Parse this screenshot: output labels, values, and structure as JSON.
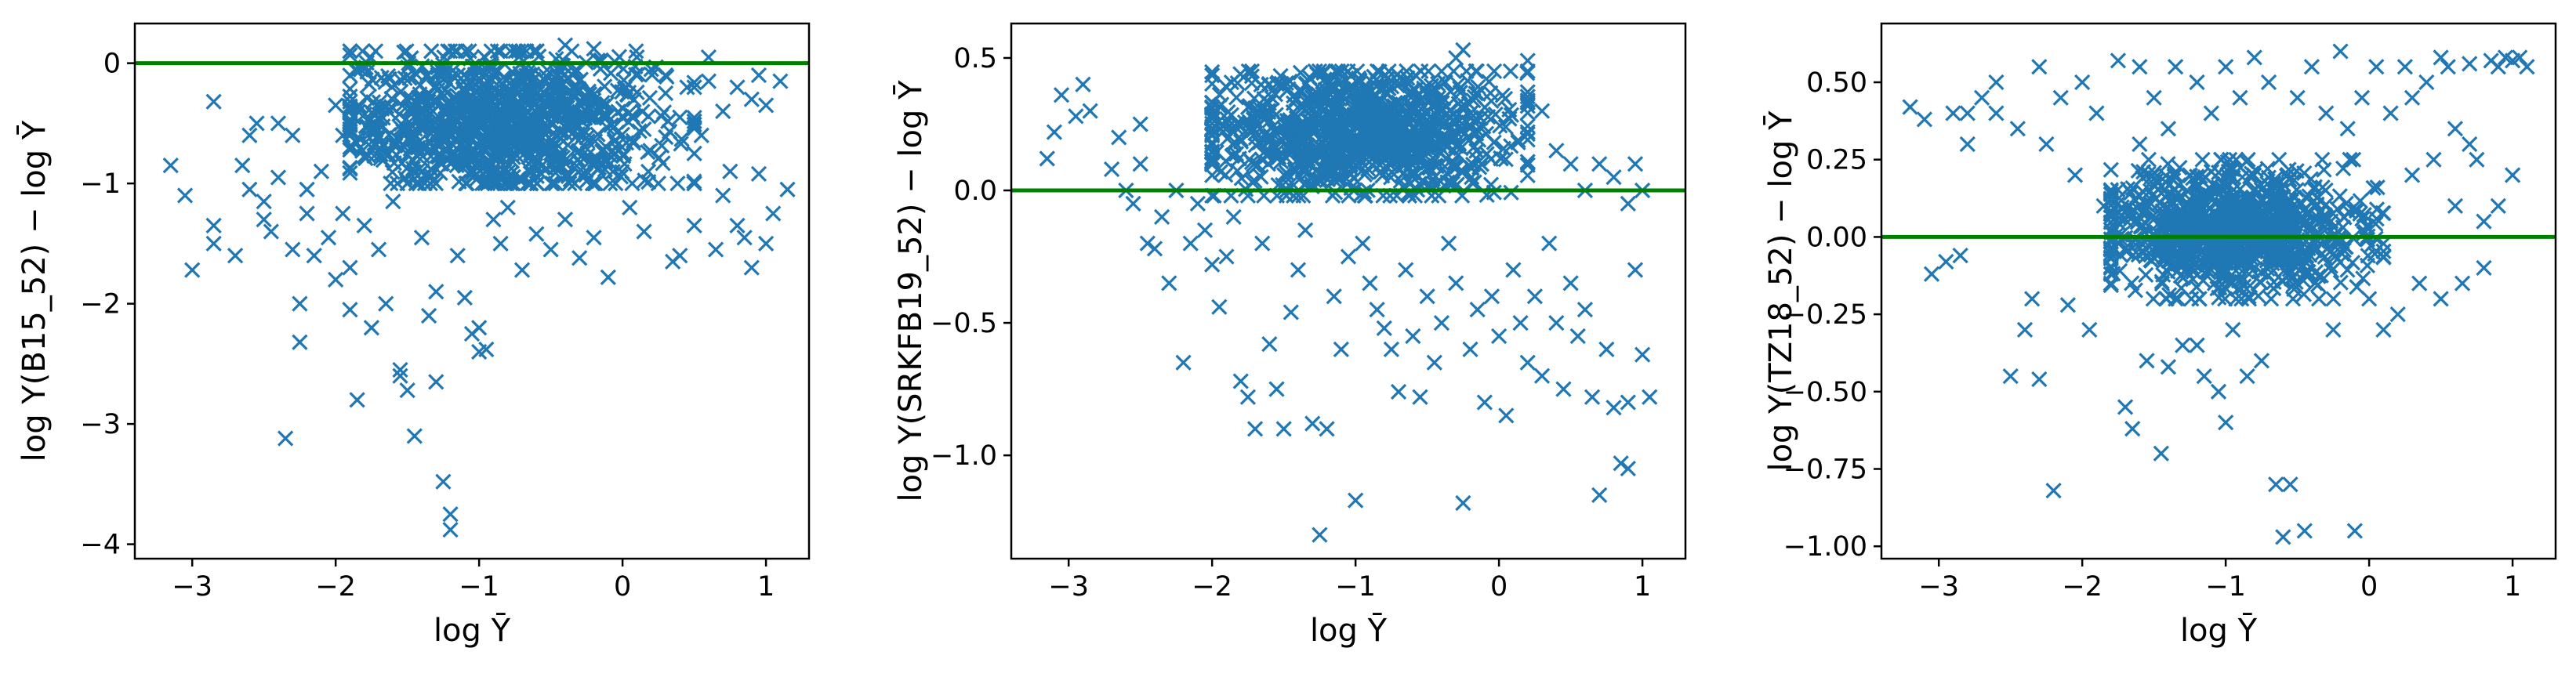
{
  "style": {
    "marker_color": "#1f77b4",
    "reference_line_color": "#008000",
    "frame_color": "#000000"
  },
  "chart_data": [
    {
      "type": "scatter",
      "marker": "x",
      "xlabel": "log Ȳ",
      "ylabel": "log Y(B15_52) − log Ȳ",
      "xlim": [
        -3.4,
        1.3
      ],
      "ylim": [
        -4.12,
        0.33
      ],
      "xticks": [
        -3,
        -2,
        -1,
        0,
        1
      ],
      "xtick_labels": [
        "−3",
        "−2",
        "−1",
        "0",
        "1"
      ],
      "yticks": [
        -4,
        -3,
        -2,
        -1,
        0
      ],
      "ytick_labels": [
        "−4",
        "−3",
        "−2",
        "−1",
        "0"
      ],
      "reference_line_y": 0,
      "cluster": {
        "count": 1000,
        "center": [
          -0.85,
          -0.5
        ],
        "spread": [
          0.55,
          0.3
        ],
        "x_range": [
          -1.9,
          0.5
        ],
        "y_range": [
          -1.0,
          0.1
        ]
      },
      "points": [
        [
          -3.15,
          -0.85
        ],
        [
          -3.05,
          -1.1
        ],
        [
          -3.0,
          -1.72
        ],
        [
          -2.85,
          -0.32
        ],
        [
          -2.85,
          -1.35
        ],
        [
          -2.85,
          -1.5
        ],
        [
          -2.7,
          -1.6
        ],
        [
          -2.65,
          -0.85
        ],
        [
          -2.6,
          -1.05
        ],
        [
          -2.55,
          -0.5
        ],
        [
          -2.5,
          -1.15
        ],
        [
          -2.5,
          -1.3
        ],
        [
          -2.45,
          -1.4
        ],
        [
          -2.4,
          -0.95
        ],
        [
          -2.35,
          -3.12
        ],
        [
          -2.3,
          -1.55
        ],
        [
          -2.25,
          -2.0
        ],
        [
          -2.25,
          -2.32
        ],
        [
          -2.2,
          -1.25
        ],
        [
          -2.15,
          -1.6
        ],
        [
          -2.05,
          -1.45
        ],
        [
          -2.0,
          -1.8
        ],
        [
          -1.95,
          -0.6
        ],
        [
          -1.9,
          -1.7
        ],
        [
          -1.9,
          -2.05
        ],
        [
          -1.85,
          -2.8
        ],
        [
          -1.8,
          -1.35
        ],
        [
          -1.75,
          -2.2
        ],
        [
          -1.7,
          -1.55
        ],
        [
          -1.65,
          -2.0
        ],
        [
          -1.6,
          -1.15
        ],
        [
          -1.55,
          -2.55
        ],
        [
          -1.55,
          -2.6
        ],
        [
          -1.5,
          -2.72
        ],
        [
          -1.45,
          -3.1
        ],
        [
          -1.4,
          -1.45
        ],
        [
          -1.35,
          -2.1
        ],
        [
          -1.3,
          -1.9
        ],
        [
          -1.3,
          -2.65
        ],
        [
          -1.25,
          -3.48
        ],
        [
          -1.2,
          -3.75
        ],
        [
          -1.2,
          -3.88
        ],
        [
          -1.15,
          -1.6
        ],
        [
          -1.1,
          -1.95
        ],
        [
          -1.05,
          -2.25
        ],
        [
          -1.0,
          -2.4
        ],
        [
          -1.0,
          -2.2
        ],
        [
          -0.95,
          -2.38
        ],
        [
          -0.9,
          -1.3
        ],
        [
          -0.85,
          -1.5
        ],
        [
          -0.8,
          -1.2
        ],
        [
          -0.7,
          -1.72
        ],
        [
          -0.6,
          -1.42
        ],
        [
          -0.5,
          -1.55
        ],
        [
          -0.4,
          -1.3
        ],
        [
          -0.3,
          -1.62
        ],
        [
          -0.2,
          -1.45
        ],
        [
          -0.1,
          -1.78
        ],
        [
          0.05,
          -1.2
        ],
        [
          0.15,
          -1.4
        ],
        [
          0.25,
          -1.0
        ],
        [
          0.3,
          -0.25
        ],
        [
          0.35,
          -1.65
        ],
        [
          0.4,
          -1.6
        ],
        [
          0.45,
          -0.2
        ],
        [
          0.5,
          -1.35
        ],
        [
          0.55,
          -0.6
        ],
        [
          0.6,
          -0.15
        ],
        [
          0.65,
          -1.55
        ],
        [
          0.7,
          -1.1
        ],
        [
          0.75,
          -0.9
        ],
        [
          0.8,
          -1.35
        ],
        [
          0.85,
          -1.45
        ],
        [
          0.9,
          -1.7
        ],
        [
          0.9,
          -0.3
        ],
        [
          0.95,
          -0.92
        ],
        [
          1.0,
          -1.5
        ],
        [
          1.05,
          -1.25
        ],
        [
          1.1,
          -0.15
        ],
        [
          1.15,
          -1.05
        ],
        [
          0.7,
          -0.4
        ],
        [
          0.8,
          -0.2
        ],
        [
          0.95,
          -0.1
        ],
        [
          1.0,
          -0.35
        ],
        [
          0.6,
          0.05
        ],
        [
          0.5,
          -0.2
        ],
        [
          -2.0,
          -0.35
        ],
        [
          -2.3,
          -0.6
        ],
        [
          -2.1,
          -0.9
        ],
        [
          -2.4,
          -0.5
        ],
        [
          -2.6,
          -0.6
        ],
        [
          -1.95,
          -1.25
        ],
        [
          -2.2,
          -1.05
        ],
        [
          0.2,
          -0.05
        ],
        [
          0.1,
          0.05
        ],
        [
          -0.2,
          0.12
        ],
        [
          -0.4,
          0.15
        ],
        [
          -0.7,
          0.1
        ],
        [
          0.3,
          -0.1
        ],
        [
          0.4,
          -0.45
        ]
      ]
    },
    {
      "type": "scatter",
      "marker": "x",
      "xlabel": "log Ȳ",
      "ylabel": "log Y(SRKFB19_52) − log Ȳ",
      "xlim": [
        -3.4,
        1.3
      ],
      "ylim": [
        -1.39,
        0.63
      ],
      "xticks": [
        -3,
        -2,
        -1,
        0,
        1
      ],
      "xtick_labels": [
        "−3",
        "−2",
        "−1",
        "0",
        "1"
      ],
      "yticks": [
        -1.0,
        -0.5,
        0.0,
        0.5
      ],
      "ytick_labels": [
        "−1.0",
        "−0.5",
        "0.0",
        "0.5"
      ],
      "reference_line_y": 0,
      "cluster": {
        "count": 1000,
        "center": [
          -1.0,
          0.22
        ],
        "spread": [
          0.55,
          0.12
        ],
        "x_range": [
          -2.0,
          0.2
        ],
        "y_range": [
          -0.02,
          0.45
        ]
      },
      "points": [
        [
          -3.15,
          0.12
        ],
        [
          -3.1,
          0.22
        ],
        [
          -3.05,
          0.36
        ],
        [
          -2.95,
          0.28
        ],
        [
          -2.9,
          0.4
        ],
        [
          -2.85,
          0.3
        ],
        [
          -2.7,
          0.08
        ],
        [
          -2.65,
          0.2
        ],
        [
          -2.6,
          0.0
        ],
        [
          -2.55,
          -0.05
        ],
        [
          -2.5,
          0.1
        ],
        [
          -2.5,
          0.25
        ],
        [
          -2.45,
          -0.2
        ],
        [
          -2.4,
          -0.22
        ],
        [
          -2.35,
          -0.1
        ],
        [
          -2.3,
          -0.35
        ],
        [
          -2.25,
          0.0
        ],
        [
          -2.2,
          -0.65
        ],
        [
          -2.15,
          -0.2
        ],
        [
          -2.1,
          -0.05
        ],
        [
          -2.05,
          -0.15
        ],
        [
          -2.0,
          -0.28
        ],
        [
          -1.95,
          -0.44
        ],
        [
          -1.9,
          -0.25
        ],
        [
          -1.85,
          -0.1
        ],
        [
          -1.8,
          -0.72
        ],
        [
          -1.75,
          -0.78
        ],
        [
          -1.7,
          -0.9
        ],
        [
          -1.65,
          -0.2
        ],
        [
          -1.6,
          -0.58
        ],
        [
          -1.55,
          -0.75
        ],
        [
          -1.5,
          -0.9
        ],
        [
          -1.45,
          -0.46
        ],
        [
          -1.4,
          -0.3
        ],
        [
          -1.35,
          -0.15
        ],
        [
          -1.3,
          -0.88
        ],
        [
          -1.25,
          -1.3
        ],
        [
          -1.2,
          -0.9
        ],
        [
          -1.15,
          -0.4
        ],
        [
          -1.1,
          -0.6
        ],
        [
          -1.05,
          -0.25
        ],
        [
          -1.0,
          -1.17
        ],
        [
          -0.95,
          -0.2
        ],
        [
          -0.9,
          -0.35
        ],
        [
          -0.85,
          -0.45
        ],
        [
          -0.8,
          -0.52
        ],
        [
          -0.75,
          -0.6
        ],
        [
          -0.7,
          -0.76
        ],
        [
          -0.65,
          -0.3
        ],
        [
          -0.6,
          -0.55
        ],
        [
          -0.55,
          -0.78
        ],
        [
          -0.5,
          -0.4
        ],
        [
          -0.45,
          -0.65
        ],
        [
          -0.4,
          -0.5
        ],
        [
          -0.35,
          -0.2
        ],
        [
          -0.3,
          -0.35
        ],
        [
          -0.25,
          -1.18
        ],
        [
          -0.2,
          -0.6
        ],
        [
          -0.15,
          -0.45
        ],
        [
          -0.1,
          -0.8
        ],
        [
          -0.05,
          -0.4
        ],
        [
          0.0,
          -0.55
        ],
        [
          0.05,
          -0.85
        ],
        [
          0.1,
          -0.3
        ],
        [
          0.15,
          -0.5
        ],
        [
          0.2,
          -0.65
        ],
        [
          0.25,
          -0.4
        ],
        [
          0.3,
          -0.7
        ],
        [
          0.35,
          -0.2
        ],
        [
          0.4,
          -0.5
        ],
        [
          0.45,
          -0.75
        ],
        [
          0.5,
          -0.35
        ],
        [
          0.55,
          -0.55
        ],
        [
          0.6,
          -0.45
        ],
        [
          0.65,
          -0.78
        ],
        [
          0.7,
          -1.15
        ],
        [
          0.75,
          -0.6
        ],
        [
          0.8,
          -0.82
        ],
        [
          0.85,
          -1.03
        ],
        [
          0.9,
          -1.05
        ],
        [
          0.9,
          -0.8
        ],
        [
          0.95,
          -0.3
        ],
        [
          1.0,
          -0.62
        ],
        [
          1.05,
          -0.78
        ],
        [
          0.9,
          -0.05
        ],
        [
          0.95,
          0.1
        ],
        [
          1.0,
          0.0
        ],
        [
          0.6,
          0.0
        ],
        [
          0.7,
          0.1
        ],
        [
          0.5,
          0.1
        ],
        [
          0.2,
          0.49
        ],
        [
          -0.25,
          0.53
        ],
        [
          -0.3,
          0.5
        ],
        [
          0.3,
          0.3
        ],
        [
          0.4,
          0.15
        ],
        [
          0.8,
          0.05
        ]
      ]
    },
    {
      "type": "scatter",
      "marker": "x",
      "xlabel": "log Ȳ",
      "ylabel": "log Y(TZ18_52) − log Ȳ",
      "xlim": [
        -3.4,
        1.3
      ],
      "ylim": [
        -1.04,
        0.69
      ],
      "xticks": [
        -3,
        -2,
        -1,
        0,
        1
      ],
      "xtick_labels": [
        "−3",
        "−2",
        "−1",
        "0",
        "1"
      ],
      "yticks": [
        -1.0,
        -0.75,
        -0.5,
        -0.25,
        0.0,
        0.25,
        0.5
      ],
      "ytick_labels": [
        "−1.00",
        "−0.75",
        "−0.50",
        "−0.25",
        "0.00",
        "0.25",
        "0.50"
      ],
      "reference_line_y": 0,
      "cluster": {
        "count": 1000,
        "center": [
          -0.95,
          0.02
        ],
        "spread": [
          0.45,
          0.1
        ],
        "x_range": [
          -1.8,
          0.1
        ],
        "y_range": [
          -0.2,
          0.25
        ]
      },
      "points": [
        [
          -3.2,
          0.42
        ],
        [
          -3.1,
          0.38
        ],
        [
          -3.05,
          -0.12
        ],
        [
          -2.95,
          -0.08
        ],
        [
          -2.9,
          0.4
        ],
        [
          -2.85,
          -0.06
        ],
        [
          -2.8,
          0.3
        ],
        [
          -2.7,
          0.45
        ],
        [
          -2.6,
          0.5
        ],
        [
          -2.5,
          -0.45
        ],
        [
          -2.45,
          0.35
        ],
        [
          -2.4,
          -0.3
        ],
        [
          -2.35,
          -0.2
        ],
        [
          -2.3,
          0.55
        ],
        [
          -2.25,
          0.3
        ],
        [
          -2.2,
          -0.82
        ],
        [
          -2.15,
          0.45
        ],
        [
          -2.1,
          -0.22
        ],
        [
          -2.05,
          0.2
        ],
        [
          -2.0,
          0.5
        ],
        [
          -1.95,
          -0.3
        ],
        [
          -1.9,
          0.4
        ],
        [
          -1.85,
          0.1
        ],
        [
          -1.8,
          -0.15
        ],
        [
          -1.75,
          0.57
        ],
        [
          -1.7,
          -0.55
        ],
        [
          -1.65,
          -0.62
        ],
        [
          -1.6,
          0.3
        ],
        [
          -1.55,
          -0.4
        ],
        [
          -1.5,
          0.45
        ],
        [
          -1.45,
          -0.7
        ],
        [
          -1.4,
          0.35
        ],
        [
          -1.35,
          0.55
        ],
        [
          -1.3,
          -0.35
        ],
        [
          -1.25,
          0.2
        ],
        [
          -1.2,
          0.5
        ],
        [
          -1.15,
          -0.45
        ],
        [
          -1.1,
          0.4
        ],
        [
          -1.05,
          -0.5
        ],
        [
          -1.0,
          0.55
        ],
        [
          -0.95,
          -0.3
        ],
        [
          -0.9,
          0.45
        ],
        [
          -0.85,
          -0.45
        ],
        [
          -0.8,
          0.58
        ],
        [
          -0.75,
          -0.4
        ],
        [
          -0.7,
          0.5
        ],
        [
          -0.65,
          -0.8
        ],
        [
          -0.6,
          -0.97
        ],
        [
          -0.55,
          -0.8
        ],
        [
          -0.5,
          0.45
        ],
        [
          -0.45,
          -0.95
        ],
        [
          -0.4,
          0.55
        ],
        [
          -0.35,
          -0.2
        ],
        [
          -0.3,
          0.4
        ],
        [
          -0.25,
          -0.3
        ],
        [
          -0.2,
          0.6
        ],
        [
          -0.15,
          0.35
        ],
        [
          -0.1,
          -0.95
        ],
        [
          -0.05,
          0.45
        ],
        [
          0.0,
          -0.2
        ],
        [
          0.05,
          0.55
        ],
        [
          0.1,
          -0.3
        ],
        [
          0.15,
          0.4
        ],
        [
          0.2,
          -0.25
        ],
        [
          0.25,
          0.55
        ],
        [
          0.3,
          0.2
        ],
        [
          0.35,
          -0.15
        ],
        [
          0.4,
          0.5
        ],
        [
          0.45,
          0.25
        ],
        [
          0.5,
          -0.2
        ],
        [
          0.55,
          0.55
        ],
        [
          0.6,
          0.1
        ],
        [
          0.65,
          -0.15
        ],
        [
          0.7,
          0.56
        ],
        [
          0.75,
          0.25
        ],
        [
          0.8,
          0.05
        ],
        [
          0.85,
          0.57
        ],
        [
          0.9,
          0.55
        ],
        [
          0.95,
          0.58
        ],
        [
          1.0,
          0.57
        ],
        [
          1.05,
          0.58
        ],
        [
          1.1,
          0.55
        ],
        [
          1.0,
          0.2
        ],
        [
          0.9,
          0.1
        ],
        [
          0.8,
          -0.1
        ],
        [
          0.7,
          0.3
        ],
        [
          -2.6,
          0.4
        ],
        [
          -2.8,
          0.4
        ],
        [
          -1.6,
          0.55
        ],
        [
          -1.0,
          -0.6
        ],
        [
          -1.2,
          -0.35
        ],
        [
          -1.4,
          -0.42
        ],
        [
          -2.3,
          -0.46
        ],
        [
          0.3,
          0.45
        ],
        [
          0.6,
          0.35
        ],
        [
          0.5,
          0.58
        ]
      ]
    }
  ]
}
